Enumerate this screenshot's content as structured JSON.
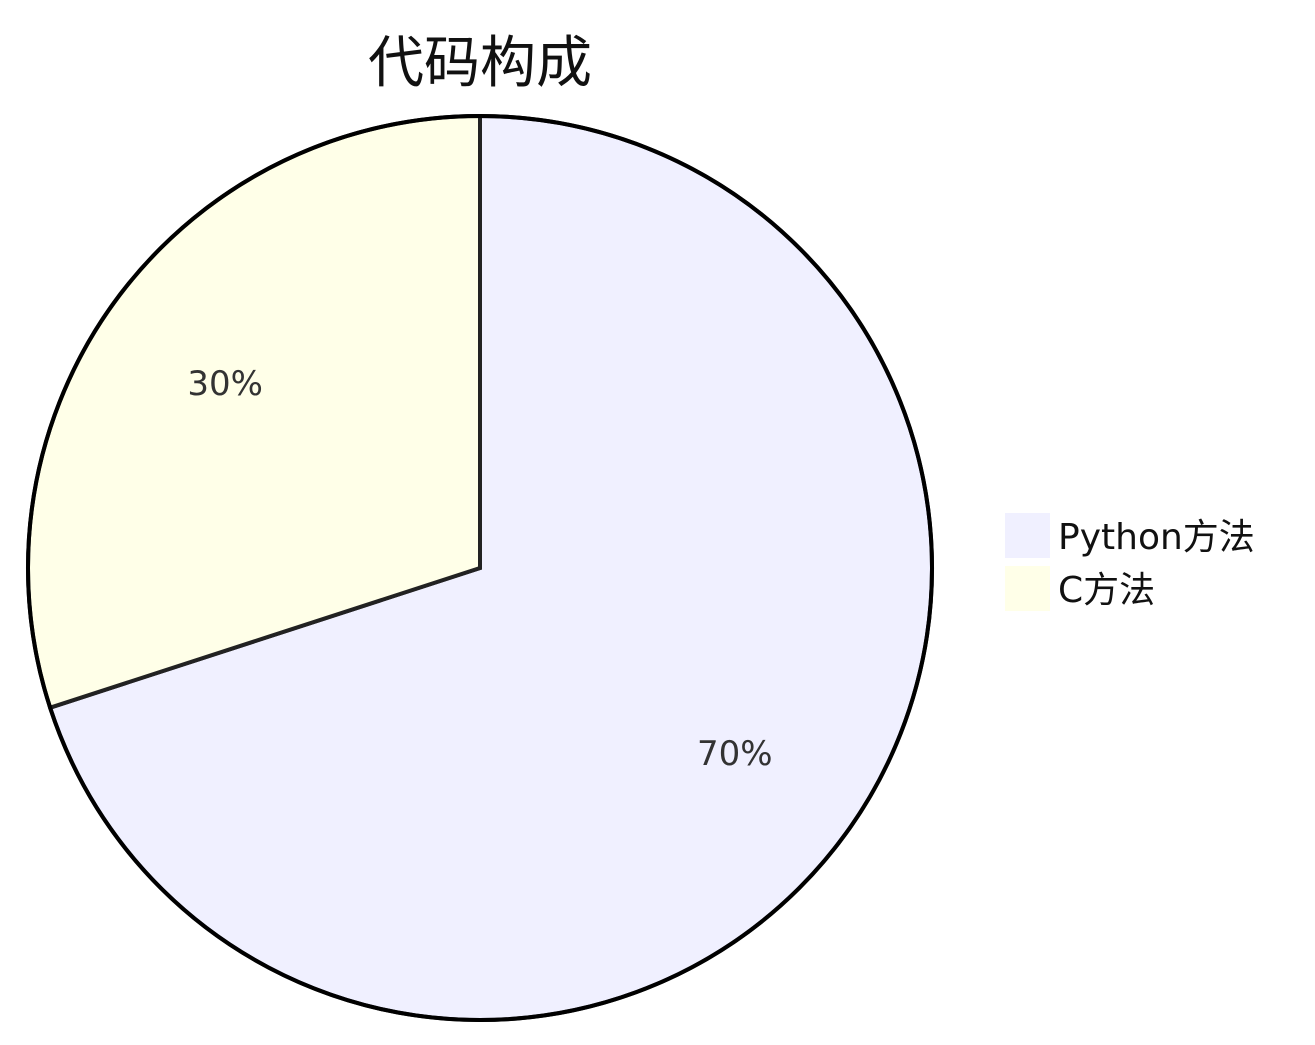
{
  "chart_data": {
    "type": "pie",
    "title": "代码构成",
    "start_angle_deg": 0,
    "direction": "clockwise",
    "slices": [
      {
        "label": "Python方法",
        "value": 70,
        "value_label": "70%",
        "color": "#f0f0ff"
      },
      {
        "label": "C方法",
        "value": 30,
        "value_label": "30%",
        "color": "#ffffe8"
      }
    ],
    "legend": {
      "placement": "right",
      "entries": [
        "Python方法",
        "C方法"
      ]
    }
  },
  "colors": {
    "background": "#ffffff",
    "outline": "#000000",
    "divider": "#222222"
  }
}
